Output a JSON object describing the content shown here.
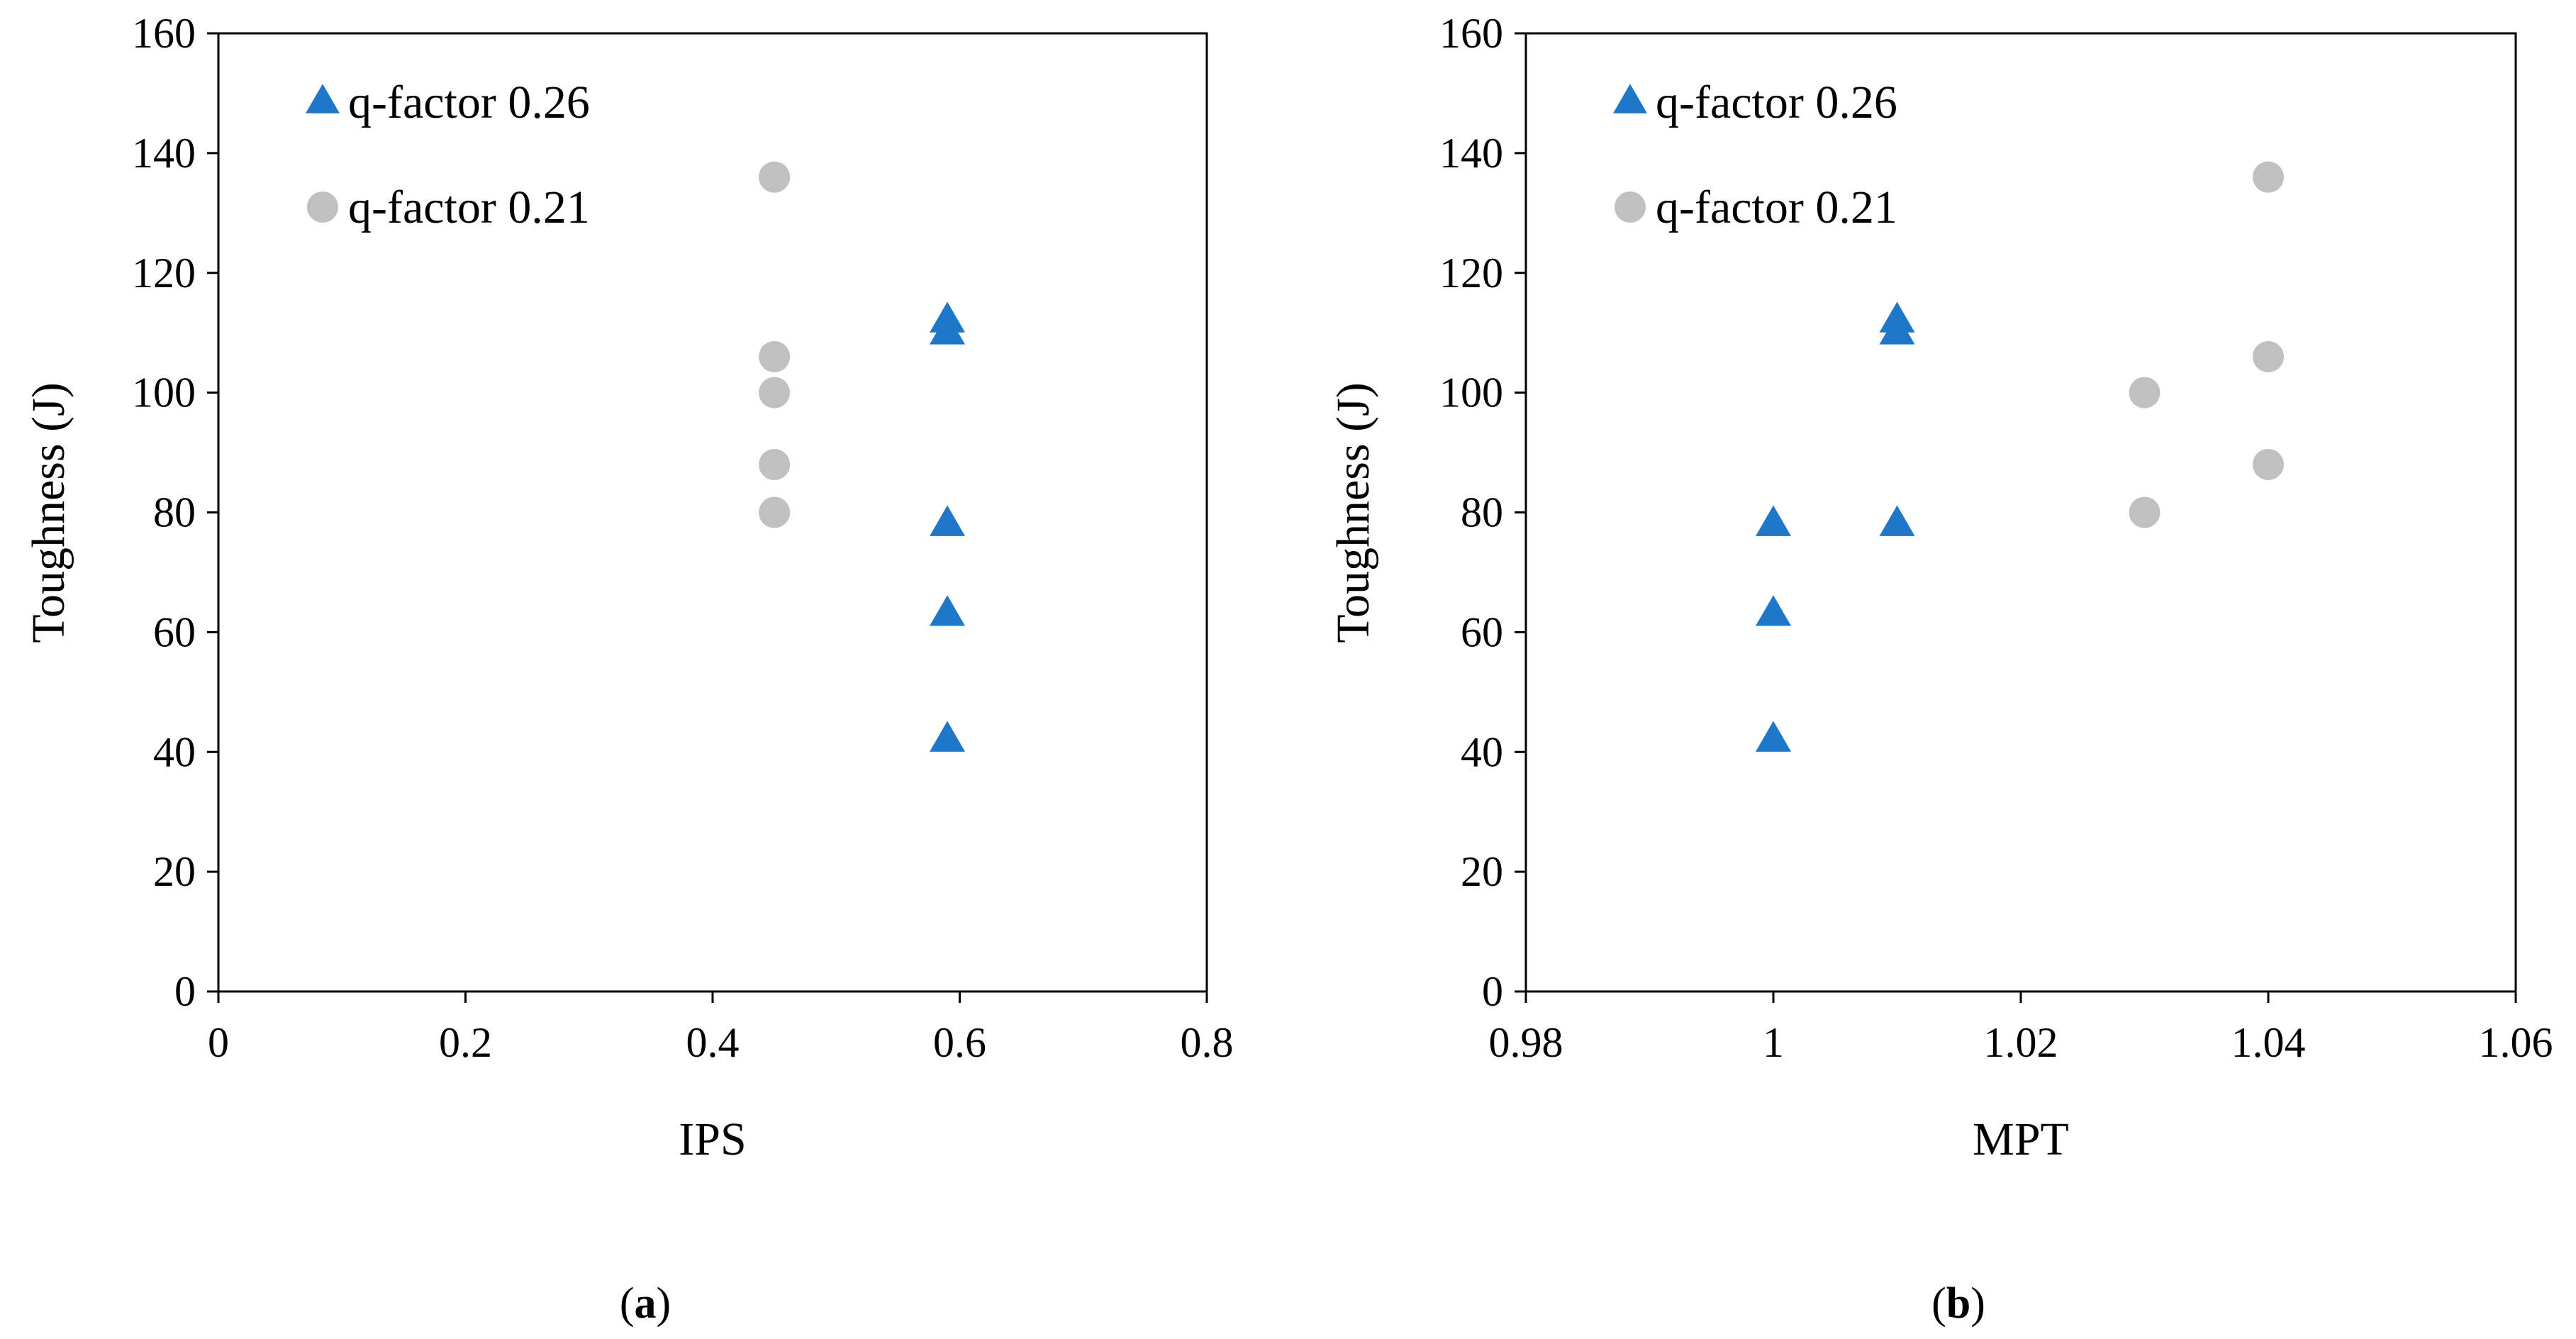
{
  "chart_data": [
    {
      "type": "scatter",
      "panel_label": "a",
      "xlabel": "IPS",
      "ylabel": "Toughness (J)",
      "xlim": [
        0,
        0.8
      ],
      "ylim": [
        0,
        160
      ],
      "xticks": [
        "0",
        "0.2",
        "0.4",
        "0.6",
        "0.8"
      ],
      "yticks": [
        "0",
        "20",
        "40",
        "60",
        "80",
        "100",
        "120",
        "140",
        "160"
      ],
      "legend_position": "top-left",
      "series": [
        {
          "name": "q-factor 0.26",
          "marker": "triangle",
          "color": "#1f77c8",
          "points": [
            {
              "x": 0.59,
              "y": 112
            },
            {
              "x": 0.59,
              "y": 110
            },
            {
              "x": 0.59,
              "y": 78
            },
            {
              "x": 0.59,
              "y": 63
            },
            {
              "x": 0.59,
              "y": 42
            }
          ]
        },
        {
          "name": "q-factor 0.21",
          "marker": "circle",
          "color": "#c0c0c0",
          "points": [
            {
              "x": 0.45,
              "y": 136
            },
            {
              "x": 0.45,
              "y": 106
            },
            {
              "x": 0.45,
              "y": 100
            },
            {
              "x": 0.45,
              "y": 88
            },
            {
              "x": 0.45,
              "y": 80
            }
          ]
        }
      ]
    },
    {
      "type": "scatter",
      "panel_label": "b",
      "xlabel": "MPT",
      "ylabel": "Toughness (J)",
      "xlim": [
        0.98,
        1.06
      ],
      "ylim": [
        0,
        160
      ],
      "xticks": [
        "0.98",
        "1",
        "1.02",
        "1.04",
        "1.06"
      ],
      "yticks": [
        "0",
        "20",
        "40",
        "60",
        "80",
        "100",
        "120",
        "140",
        "160"
      ],
      "legend_position": "top-left",
      "series": [
        {
          "name": "q-factor 0.26",
          "marker": "triangle",
          "color": "#1f77c8",
          "points": [
            {
              "x": 1.0,
              "y": 78
            },
            {
              "x": 1.0,
              "y": 63
            },
            {
              "x": 1.0,
              "y": 42
            },
            {
              "x": 1.01,
              "y": 112
            },
            {
              "x": 1.01,
              "y": 110
            },
            {
              "x": 1.01,
              "y": 78
            }
          ]
        },
        {
          "name": "q-factor 0.21",
          "marker": "circle",
          "color": "#c0c0c0",
          "points": [
            {
              "x": 1.03,
              "y": 100
            },
            {
              "x": 1.03,
              "y": 80
            },
            {
              "x": 1.04,
              "y": 136
            },
            {
              "x": 1.04,
              "y": 106
            },
            {
              "x": 1.04,
              "y": 88
            }
          ]
        }
      ]
    }
  ]
}
